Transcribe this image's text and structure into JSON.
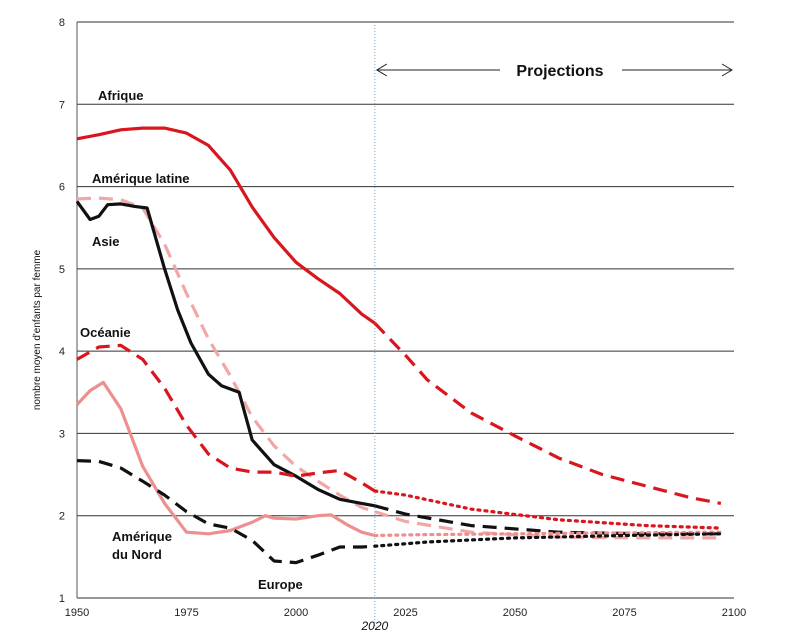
{
  "chart_data": {
    "type": "line",
    "ylabel": "nombre moyen d'enfants par femme",
    "xlabel": "",
    "xlim": [
      1950,
      2100
    ],
    "ylim": [
      1,
      8
    ],
    "x_ticks": [
      "1950",
      "1975",
      "2000",
      "2025",
      "2050",
      "2075",
      "2100"
    ],
    "y_ticks": [
      "1",
      "2",
      "3",
      "4",
      "5",
      "6",
      "7",
      "8"
    ],
    "grid": "horizontal",
    "projection_start": 2018,
    "projection_marker_label": "2020",
    "projection_label": "Projections",
    "series": [
      {
        "name": "Afrique",
        "color": "#d9161e",
        "style": "solid-then-dashed",
        "points": [
          [
            1950,
            6.58
          ],
          [
            1955,
            6.63
          ],
          [
            1960,
            6.69
          ],
          [
            1965,
            6.71
          ],
          [
            1970,
            6.71
          ],
          [
            1975,
            6.65
          ],
          [
            1980,
            6.5
          ],
          [
            1985,
            6.2
          ],
          [
            1990,
            5.75
          ],
          [
            1995,
            5.38
          ],
          [
            2000,
            5.08
          ],
          [
            2005,
            4.88
          ],
          [
            2010,
            4.7
          ],
          [
            2015,
            4.45
          ],
          [
            2018,
            4.34
          ]
        ],
        "projection": [
          [
            2018,
            4.34
          ],
          [
            2025,
            3.95
          ],
          [
            2030,
            3.65
          ],
          [
            2040,
            3.25
          ],
          [
            2050,
            2.97
          ],
          [
            2060,
            2.7
          ],
          [
            2070,
            2.5
          ],
          [
            2080,
            2.36
          ],
          [
            2090,
            2.22
          ],
          [
            2097,
            2.15
          ]
        ]
      },
      {
        "name": "Amérique latine",
        "color": "#f2a7a7",
        "style": "dashed",
        "points": [
          [
            1950,
            5.85
          ],
          [
            1955,
            5.86
          ],
          [
            1960,
            5.84
          ],
          [
            1965,
            5.74
          ],
          [
            1970,
            5.3
          ],
          [
            1975,
            4.7
          ],
          [
            1980,
            4.15
          ],
          [
            1985,
            3.7
          ],
          [
            1990,
            3.2
          ],
          [
            1995,
            2.85
          ],
          [
            2000,
            2.6
          ],
          [
            2005,
            2.42
          ],
          [
            2010,
            2.25
          ],
          [
            2015,
            2.1
          ],
          [
            2018,
            2.05
          ]
        ],
        "projection": [
          [
            2018,
            2.05
          ],
          [
            2025,
            1.93
          ],
          [
            2040,
            1.8
          ],
          [
            2060,
            1.74
          ],
          [
            2080,
            1.73
          ],
          [
            2097,
            1.73
          ]
        ]
      },
      {
        "name": "Asie",
        "color": "#111111",
        "style": "solid-then-dashed",
        "points": [
          [
            1950,
            5.82
          ],
          [
            1953,
            5.6
          ],
          [
            1955,
            5.64
          ],
          [
            1957,
            5.78
          ],
          [
            1960,
            5.79
          ],
          [
            1963,
            5.76
          ],
          [
            1966,
            5.74
          ],
          [
            1970,
            5.0
          ],
          [
            1973,
            4.5
          ],
          [
            1976,
            4.1
          ],
          [
            1980,
            3.72
          ],
          [
            1983,
            3.58
          ],
          [
            1987,
            3.5
          ],
          [
            1990,
            2.92
          ],
          [
            1995,
            2.62
          ],
          [
            2000,
            2.48
          ],
          [
            2005,
            2.32
          ],
          [
            2010,
            2.2
          ],
          [
            2015,
            2.15
          ],
          [
            2018,
            2.12
          ]
        ],
        "projection": [
          [
            2018,
            2.12
          ],
          [
            2025,
            2.02
          ],
          [
            2040,
            1.88
          ],
          [
            2060,
            1.8
          ],
          [
            2080,
            1.78
          ],
          [
            2097,
            1.78
          ]
        ]
      },
      {
        "name": "Océanie",
        "color": "#d9161e",
        "style": "dashed-then-dotted",
        "points": [
          [
            1950,
            3.9
          ],
          [
            1955,
            4.05
          ],
          [
            1960,
            4.07
          ],
          [
            1965,
            3.9
          ],
          [
            1970,
            3.55
          ],
          [
            1975,
            3.1
          ],
          [
            1980,
            2.75
          ],
          [
            1985,
            2.58
          ],
          [
            1990,
            2.53
          ],
          [
            1995,
            2.53
          ],
          [
            2000,
            2.48
          ],
          [
            2005,
            2.52
          ],
          [
            2010,
            2.55
          ],
          [
            2015,
            2.4
          ],
          [
            2018,
            2.3
          ]
        ],
        "projection": [
          [
            2018,
            2.3
          ],
          [
            2025,
            2.25
          ],
          [
            2040,
            2.08
          ],
          [
            2060,
            1.95
          ],
          [
            2080,
            1.88
          ],
          [
            2097,
            1.85
          ]
        ]
      },
      {
        "name": "Amérique du Nord",
        "color": "#ee8f8f",
        "style": "solid-then-dotted",
        "points": [
          [
            1950,
            3.35
          ],
          [
            1953,
            3.52
          ],
          [
            1956,
            3.62
          ],
          [
            1960,
            3.3
          ],
          [
            1965,
            2.6
          ],
          [
            1970,
            2.15
          ],
          [
            1975,
            1.8
          ],
          [
            1980,
            1.78
          ],
          [
            1985,
            1.82
          ],
          [
            1990,
            1.92
          ],
          [
            1993,
            2.0
          ],
          [
            1995,
            1.97
          ],
          [
            2000,
            1.96
          ],
          [
            2005,
            2.0
          ],
          [
            2008,
            2.01
          ],
          [
            2012,
            1.88
          ],
          [
            2015,
            1.8
          ],
          [
            2018,
            1.76
          ]
        ],
        "projection": [
          [
            2018,
            1.76
          ],
          [
            2030,
            1.77
          ],
          [
            2050,
            1.78
          ],
          [
            2070,
            1.79
          ],
          [
            2097,
            1.8
          ]
        ]
      },
      {
        "name": "Europe",
        "color": "#111111",
        "style": "dashed-then-dotted",
        "points": [
          [
            1950,
            2.67
          ],
          [
            1955,
            2.66
          ],
          [
            1960,
            2.58
          ],
          [
            1965,
            2.42
          ],
          [
            1970,
            2.25
          ],
          [
            1975,
            2.05
          ],
          [
            1980,
            1.9
          ],
          [
            1985,
            1.85
          ],
          [
            1990,
            1.7
          ],
          [
            1995,
            1.45
          ],
          [
            2000,
            1.43
          ],
          [
            2005,
            1.52
          ],
          [
            2010,
            1.62
          ],
          [
            2015,
            1.62
          ],
          [
            2018,
            1.63
          ]
        ],
        "projection": [
          [
            2018,
            1.63
          ],
          [
            2030,
            1.68
          ],
          [
            2050,
            1.73
          ],
          [
            2075,
            1.76
          ],
          [
            2097,
            1.78
          ]
        ]
      }
    ],
    "labels": {
      "afrique": "Afrique",
      "amerique_latine": "Amérique latine",
      "asie": "Asie",
      "oceanie": "Océanie",
      "amerique_nord_l1": "Amérique",
      "amerique_nord_l2": "du Nord",
      "europe": "Europe"
    }
  }
}
